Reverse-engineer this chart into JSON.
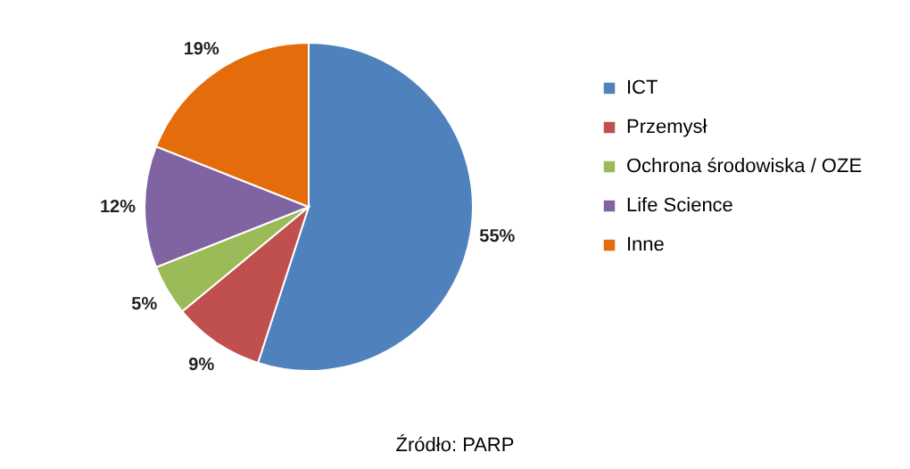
{
  "chart_data": {
    "type": "pie",
    "categories": [
      "ICT",
      "Przemysł",
      "Ochrona środowiska / OZE",
      "Life Science",
      "Inne"
    ],
    "values": [
      55,
      9,
      5,
      12,
      19
    ],
    "value_labels": [
      "55%",
      "9%",
      "5%",
      "12%",
      "19%"
    ],
    "colors": [
      "#4f81bd",
      "#c0504d",
      "#9bbb59",
      "#8064a2",
      "#e46c0a"
    ],
    "legend": "right",
    "annotations": [
      "Źródło: PARP"
    ]
  }
}
